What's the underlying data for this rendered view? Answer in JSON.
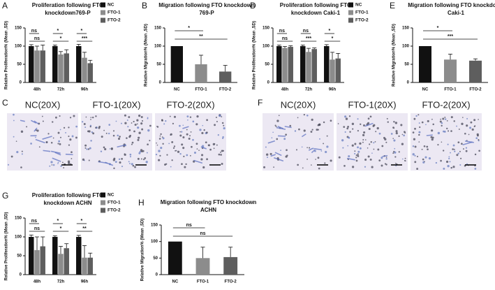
{
  "chart_data": [
    {
      "type": "grouped-bar",
      "letter": "A",
      "title": [
        "Proliferation following FTO",
        "knockdown769-P"
      ],
      "y_label": "Relative Proliferation% (Mean ,SD)",
      "categories": [
        "48h",
        "72h",
        "96h"
      ],
      "ylim": [
        0,
        150
      ],
      "yticks": [
        0,
        50,
        100,
        150
      ],
      "legend": true,
      "series": [
        {
          "name": "NC",
          "color": "#111111",
          "values": [
            100,
            100,
            100
          ],
          "errors": [
            4,
            3,
            5
          ]
        },
        {
          "name": "FTO-1",
          "color": "#8c8c8c",
          "values": [
            88,
            77,
            68
          ],
          "errors": [
            12,
            8,
            15
          ]
        },
        {
          "name": "FTO-2",
          "color": "#5e5e5e",
          "values": [
            88,
            80,
            53
          ],
          "errors": [
            15,
            10,
            8
          ]
        }
      ],
      "significance": [
        {
          "group": 0,
          "between": [
            0,
            1
          ],
          "text": "ns"
        },
        {
          "group": 0,
          "between": [
            0,
            2
          ],
          "text": "ns"
        },
        {
          "group": 1,
          "between": [
            0,
            1
          ],
          "text": "*"
        },
        {
          "group": 1,
          "between": [
            0,
            2
          ],
          "text": "*"
        },
        {
          "group": 2,
          "between": [
            0,
            1
          ],
          "text": "*"
        },
        {
          "group": 2,
          "between": [
            0,
            2
          ],
          "text": "***"
        }
      ]
    },
    {
      "type": "bar",
      "letter": "B",
      "title": [
        "Migration following FTO knockdown",
        "769-P"
      ],
      "y_label": "Relative Migration% (Mean ,SD)",
      "categories": [
        "NC",
        "FTO-1",
        "FTO-2"
      ],
      "ylim": [
        0,
        150
      ],
      "yticks": [
        0,
        50,
        100,
        150
      ],
      "colors": [
        "#111111",
        "#8c8c8c",
        "#5e5e5e"
      ],
      "values": [
        100,
        50,
        30
      ],
      "errors": [
        0,
        25,
        17
      ],
      "significance": [
        {
          "between": [
            0,
            1
          ],
          "text": "*"
        },
        {
          "between": [
            0,
            2
          ],
          "text": "**"
        }
      ]
    },
    {
      "type": "grouped-bar",
      "letter": "D",
      "title": [
        "Proliferation following FTO",
        "knockdown Caki-1"
      ],
      "y_label": "Relative Proliferation% (Mean ,SD)",
      "categories": [
        "48h",
        "72h",
        "96h"
      ],
      "ylim": [
        0,
        150
      ],
      "yticks": [
        0,
        50,
        100,
        150
      ],
      "legend": true,
      "series": [
        {
          "name": "NC",
          "color": "#111111",
          "values": [
            100,
            100,
            100
          ],
          "errors": [
            3,
            3,
            4
          ]
        },
        {
          "name": "FTO-1",
          "color": "#8c8c8c",
          "values": [
            95,
            84,
            63
          ],
          "errors": [
            4,
            10,
            20
          ]
        },
        {
          "name": "FTO-2",
          "color": "#5e5e5e",
          "values": [
            98,
            92,
            66
          ],
          "errors": [
            3,
            3,
            14
          ]
        }
      ],
      "significance": [
        {
          "group": 0,
          "between": [
            0,
            1
          ],
          "text": "ns"
        },
        {
          "group": 0,
          "between": [
            0,
            2
          ],
          "text": "ns"
        },
        {
          "group": 1,
          "between": [
            0,
            1
          ],
          "text": "ns"
        },
        {
          "group": 1,
          "between": [
            0,
            2
          ],
          "text": "***"
        },
        {
          "group": 2,
          "between": [
            0,
            1
          ],
          "text": "*"
        },
        {
          "group": 2,
          "between": [
            0,
            2
          ],
          "text": "*"
        }
      ]
    },
    {
      "type": "bar",
      "letter": "E",
      "title": [
        "Migration following FTO knockdown",
        "Caki-1"
      ],
      "y_label": "Relative Migration% (Mean ,SD)",
      "categories": [
        "NC",
        "FTO-1",
        "FTO-2"
      ],
      "ylim": [
        0,
        150
      ],
      "yticks": [
        0,
        50,
        100,
        150
      ],
      "colors": [
        "#111111",
        "#8c8c8c",
        "#5e5e5e"
      ],
      "values": [
        100,
        63,
        60
      ],
      "errors": [
        0,
        15,
        5
      ],
      "significance": [
        {
          "between": [
            0,
            1
          ],
          "text": "*"
        },
        {
          "between": [
            0,
            2
          ],
          "text": "***"
        }
      ]
    },
    {
      "type": "grouped-bar",
      "letter": "G",
      "title": [
        "Proliferation following FTO",
        "knockdown ACHN"
      ],
      "y_label": "Relative Proliferation% (Mean ,SD)",
      "categories": [
        "48h",
        "72h",
        "96h"
      ],
      "ylim": [
        0,
        150
      ],
      "yticks": [
        0,
        50,
        100,
        150
      ],
      "legend": true,
      "series": [
        {
          "name": "NC",
          "color": "#111111",
          "values": [
            100,
            100,
            100
          ],
          "errors": [
            5,
            3,
            4
          ]
        },
        {
          "name": "FTO-1",
          "color": "#8c8c8c",
          "values": [
            65,
            55,
            45
          ],
          "errors": [
            35,
            20,
            32
          ]
        },
        {
          "name": "FTO-2",
          "color": "#5e5e5e",
          "values": [
            75,
            70,
            45
          ],
          "errors": [
            25,
            12,
            12
          ]
        }
      ],
      "significance": [
        {
          "group": 0,
          "between": [
            0,
            1
          ],
          "text": "ns"
        },
        {
          "group": 0,
          "between": [
            0,
            2
          ],
          "text": "ns"
        },
        {
          "group": 1,
          "between": [
            0,
            1
          ],
          "text": "*"
        },
        {
          "group": 1,
          "between": [
            0,
            2
          ],
          "text": "*"
        },
        {
          "group": 2,
          "between": [
            0,
            1
          ],
          "text": "*"
        },
        {
          "group": 2,
          "between": [
            0,
            2
          ],
          "text": "**"
        }
      ]
    },
    {
      "type": "bar",
      "letter": "H",
      "title": [
        "Migration following FTO knockdown",
        "ACHN"
      ],
      "y_label": "Relative Migration% (Mean ,SD)",
      "categories": [
        "NC",
        "FTO-1",
        "FTO-2"
      ],
      "ylim": [
        0,
        150
      ],
      "yticks": [
        0,
        50,
        100,
        150
      ],
      "colors": [
        "#111111",
        "#8c8c8c",
        "#5e5e5e"
      ],
      "values": [
        100,
        50,
        53
      ],
      "errors": [
        0,
        33,
        30
      ],
      "significance": [
        {
          "between": [
            0,
            1
          ],
          "text": "ns"
        },
        {
          "between": [
            0,
            2
          ],
          "text": "ns"
        }
      ]
    }
  ],
  "images": [
    {
      "letter": "C",
      "labels": [
        "NC(20X)",
        "FTO-1(20X)",
        "FTO-2(20X)"
      ]
    },
    {
      "letter": "F",
      "labels": [
        "NC(20X)",
        "FTO-1(20X)",
        "FTO-2(20X)"
      ]
    }
  ]
}
